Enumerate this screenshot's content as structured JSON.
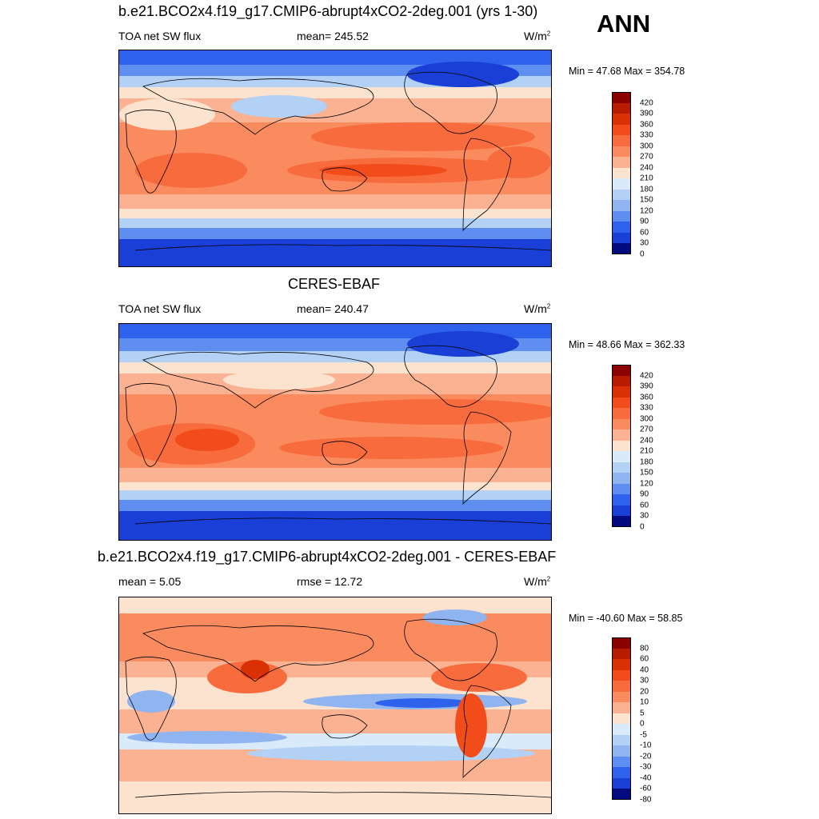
{
  "season": "ANN",
  "panels": [
    {
      "title": "b.e21.BCO2x4.f19_g17.CMIP6-abrupt4xCO2-2deg.001 (yrs 1-30)",
      "left_label": "TOA net SW flux",
      "center_label": "mean= 245.52",
      "units_base": "W/m",
      "units_sup": "2",
      "minmax": "Min =  47.68 Max = 354.78",
      "colorbar_labels": [
        "420",
        "390",
        "360",
        "330",
        "300",
        "270",
        "240",
        "210",
        "180",
        "150",
        "120",
        "90",
        "60",
        "30",
        "0"
      ]
    },
    {
      "title": "CERES-EBAF",
      "left_label": "TOA net SW flux",
      "center_label": "mean= 240.47",
      "units_base": "W/m",
      "units_sup": "2",
      "minmax": "Min =  48.66 Max = 362.33",
      "colorbar_labels": [
        "420",
        "390",
        "360",
        "330",
        "300",
        "270",
        "240",
        "210",
        "180",
        "150",
        "120",
        "90",
        "60",
        "30",
        "0"
      ]
    },
    {
      "title": "b.e21.BCO2x4.f19_g17.CMIP6-abrupt4xCO2-2deg.001 - CERES-EBAF",
      "left_label": "mean =   5.05",
      "center_label": "rmse =  12.72",
      "units_base": "W/m",
      "units_sup": "2",
      "minmax": "Min = -40.60 Max =  58.85",
      "colorbar_labels": [
        "80",
        "60",
        "40",
        "30",
        "20",
        "10",
        "5",
        "0",
        "-5",
        "-10",
        "-20",
        "-30",
        "-40",
        "-60",
        "-80"
      ]
    }
  ],
  "colors": {
    "scale": [
      "#8b0000",
      "#b71c00",
      "#d93006",
      "#f24c1a",
      "#f76b3c",
      "#f98b5e",
      "#fab292",
      "#fce3cf",
      "#d9ebfb",
      "#b3d0f5",
      "#8fb4ef",
      "#5d8ef0",
      "#2f62ec",
      "#1a3fd6",
      "#020a80"
    ]
  }
}
